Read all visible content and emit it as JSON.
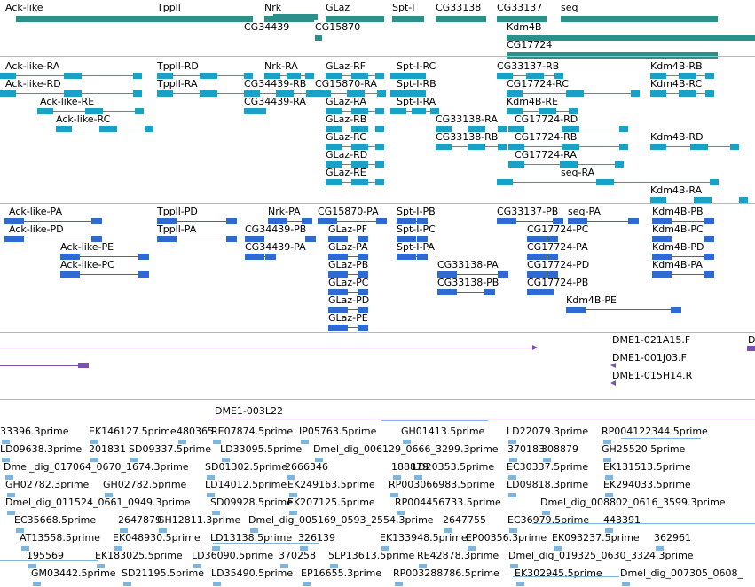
{
  "colors": {
    "gene": "#2b8f8a",
    "mrna": "#1aa1c7",
    "protein": "#2e6ad1",
    "clone": "#7a4fb3",
    "est": "#7fb5dc",
    "separator": "#b8b8b8"
  },
  "genes": [
    {
      "label": "Ack-like"
    },
    {
      "label": "Tppll"
    },
    {
      "label": "Nrk"
    },
    {
      "label": "GLaz"
    },
    {
      "label": "Spt-I"
    },
    {
      "label": "CG33138"
    },
    {
      "label": "CG33137"
    },
    {
      "label": "seq"
    },
    {
      "label": "CG34439"
    },
    {
      "label": "CG15870"
    },
    {
      "label": "Kdm4B"
    },
    {
      "label": "CG17724"
    }
  ],
  "transcripts": [
    {
      "label": "Ack-like-RA"
    },
    {
      "label": "Tppll-RD"
    },
    {
      "label": "Nrk-RA"
    },
    {
      "label": "GLaz-RF"
    },
    {
      "label": "Spt-I-RC"
    },
    {
      "label": "CG33137-RB"
    },
    {
      "label": "Kdm4B-RB"
    },
    {
      "label": "Ack-like-RD"
    },
    {
      "label": "Tppll-RA"
    },
    {
      "label": "CG34439-RB"
    },
    {
      "label": "CG15870-RA"
    },
    {
      "label": "Spt-I-RB"
    },
    {
      "label": "CG17724-RC"
    },
    {
      "label": "Kdm4B-RC"
    },
    {
      "label": "Ack-like-RE"
    },
    {
      "label": "CG34439-RA"
    },
    {
      "label": "GLaz-RA"
    },
    {
      "label": "Spt-I-RA"
    },
    {
      "label": "Kdm4B-RE"
    },
    {
      "label": "Ack-like-RC"
    },
    {
      "label": "GLaz-RB"
    },
    {
      "label": "CG33138-RA"
    },
    {
      "label": "CG17724-RD"
    },
    {
      "label": "GLaz-RC"
    },
    {
      "label": "CG33138-RB"
    },
    {
      "label": "CG17724-RB"
    },
    {
      "label": "Kdm4B-RD"
    },
    {
      "label": "GLaz-RD"
    },
    {
      "label": "CG17724-RA"
    },
    {
      "label": "GLaz-RE"
    },
    {
      "label": "seq-RA"
    },
    {
      "label": "Kdm4B-RA"
    }
  ],
  "proteins": [
    {
      "label": "Ack-like-PA"
    },
    {
      "label": "Tppll-PD"
    },
    {
      "label": "Nrk-PA"
    },
    {
      "label": "CG15870-PA"
    },
    {
      "label": "Spt-I-PB"
    },
    {
      "label": "CG33137-PB"
    },
    {
      "label": "seq-PA"
    },
    {
      "label": "Kdm4B-PB"
    },
    {
      "label": "Ack-like-PD"
    },
    {
      "label": "Tppll-PA"
    },
    {
      "label": "CG34439-PB"
    },
    {
      "label": "GLaz-PF"
    },
    {
      "label": "Spt-I-PC"
    },
    {
      "label": "CG17724-PC"
    },
    {
      "label": "Kdm4B-PC"
    },
    {
      "label": "Ack-like-PE"
    },
    {
      "label": "CG34439-PA"
    },
    {
      "label": "GLaz-PA"
    },
    {
      "label": "Spt-I-PA"
    },
    {
      "label": "CG17724-PA"
    },
    {
      "label": "Kdm4B-PD"
    },
    {
      "label": "Ack-like-PC"
    },
    {
      "label": "GLaz-PB"
    },
    {
      "label": "CG33138-PA"
    },
    {
      "label": "CG17724-PD"
    },
    {
      "label": "Kdm4B-PA"
    },
    {
      "label": "GLaz-PC"
    },
    {
      "label": "CG33138-PB"
    },
    {
      "label": "CG17724-PB"
    },
    {
      "label": "Kdm4B-PE"
    },
    {
      "label": "GLaz-PD"
    },
    {
      "label": "GLaz-PE"
    }
  ],
  "clones": [
    {
      "label": "DME1-021A15.F"
    },
    {
      "label": "D"
    },
    {
      "label": "DME1-001J03.F"
    },
    {
      "label": "DME1-015H14.R"
    },
    {
      "label": "DME1-003L22"
    }
  ],
  "ests": [
    {
      "label": "33396.3prime"
    },
    {
      "label": "EK146127.5prime"
    },
    {
      "label": "480365"
    },
    {
      "label": "RE07874.5prime"
    },
    {
      "label": "IP05763.5prime"
    },
    {
      "label": "GH01413.5prime"
    },
    {
      "label": "LD22079.3prime"
    },
    {
      "label": "RP004122344.5prime"
    },
    {
      "label": "LD09638.3prime"
    },
    {
      "label": "201831"
    },
    {
      "label": "SD09337.5prime"
    },
    {
      "label": "LD33095.5prime"
    },
    {
      "label": "Dmel_dig_006129_0666_3299.3prime"
    },
    {
      "label": "370183"
    },
    {
      "label": "308879"
    },
    {
      "label": "GH25520.5prime"
    },
    {
      "label": "Dmel_dig_017064_0670_1674.3prime"
    },
    {
      "label": "SD01302.5prime"
    },
    {
      "label": "2666346"
    },
    {
      "label": "188879"
    },
    {
      "label": "LD20353.5prime"
    },
    {
      "label": "EC30337.5prime"
    },
    {
      "label": "EK131513.5prime"
    },
    {
      "label": "GH02782.3prime"
    },
    {
      "label": "GH02782.5prime"
    },
    {
      "label": "LD14012.5prime"
    },
    {
      "label": "EK249163.5prime"
    },
    {
      "label": "RP003066983.5prime"
    },
    {
      "label": "LD09818.3prime"
    },
    {
      "label": "EK294033.5prime"
    },
    {
      "label": "Dmel_dig_011524_0661_0949.3prime"
    },
    {
      "label": "SD09928.5prime"
    },
    {
      "label": "EK207125.5prime"
    },
    {
      "label": "RP004456733.5prime"
    },
    {
      "label": "Dmel_dig_008802_0616_3599.3prime"
    },
    {
      "label": "EC35668.5prime"
    },
    {
      "label": "2647879"
    },
    {
      "label": "GH12811.3prime"
    },
    {
      "label": "Dmel_dig_005169_0593_2554.3prime"
    },
    {
      "label": "2647755"
    },
    {
      "label": "EC36979.5prime"
    },
    {
      "label": "443391"
    },
    {
      "label": "AT13558.5prime"
    },
    {
      "label": "EK048930.5prime"
    },
    {
      "label": "LD13138.5prime"
    },
    {
      "label": "326139"
    },
    {
      "label": "EK133948.5prime"
    },
    {
      "label": "EP00356.3prime"
    },
    {
      "label": "EK093237.5prime"
    },
    {
      "label": "362961"
    },
    {
      "label": "195569"
    },
    {
      "label": "EK183025.5prime"
    },
    {
      "label": "LD36090.5prime"
    },
    {
      "label": "370258"
    },
    {
      "label": "5LP13613.5prime"
    },
    {
      "label": "RE42878.3prime"
    },
    {
      "label": "Dmel_dig_019325_0630_3324.3prime"
    },
    {
      "label": "GM03442.5prime"
    },
    {
      "label": "SD21195.5prime"
    },
    {
      "label": "LD35490.5prime"
    },
    {
      "label": "EP16655.3prime"
    },
    {
      "label": "RP003288786.5prime"
    },
    {
      "label": "EK302945.5prime"
    },
    {
      "label": "Dmel_dig_007305_0608_"
    }
  ]
}
